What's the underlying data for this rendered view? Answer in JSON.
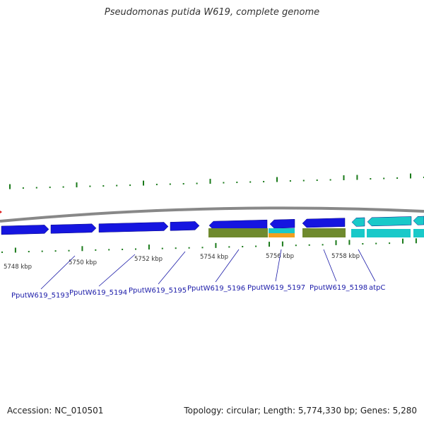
{
  "title": "Pseudomonas putida W619, complete genome",
  "footer": {
    "accession": "Accession: NC_010501",
    "summary": "Topology: circular; Length: 5,774,330 bp; Genes: 5,280"
  },
  "colors": {
    "cds": "#1515e0",
    "gene": "#6f8a2e",
    "trna": "#19c9c9",
    "misc": "#f0a020",
    "backbone": "#888888",
    "tick": "#1a7a1a",
    "label": "#1a1aa8"
  },
  "ticks": [
    {
      "label": "5748 kbp"
    },
    {
      "label": "5750 kbp"
    },
    {
      "label": "5752 kbp"
    },
    {
      "label": "5754 kbp"
    },
    {
      "label": "5756 kbp"
    },
    {
      "label": "5758 kbp"
    }
  ],
  "genes": [
    {
      "label": "PputW619_5193"
    },
    {
      "label": "PputW619_5194"
    },
    {
      "label": "PputW619_5195"
    },
    {
      "label": "PputW619_5196"
    },
    {
      "label": "PputW619_5197"
    },
    {
      "label": "PputW619_5198"
    },
    {
      "label": "atpC"
    }
  ]
}
